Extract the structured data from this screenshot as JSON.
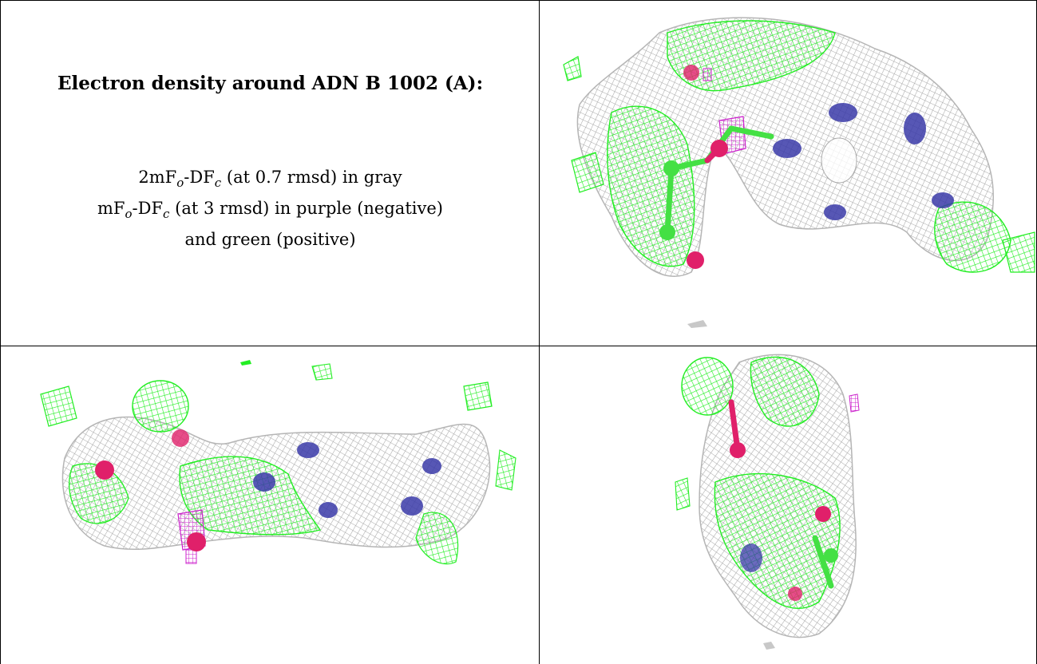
{
  "title": "Electron density around ADN B 1002 (A):",
  "legend": {
    "line1_a": "2mF",
    "line1_sub_o": "o",
    "line1_b": "-DF",
    "line1_sub_c": "c",
    "line1_c": " (at 0.7 rmsd) in gray",
    "line2_a": "mF",
    "line2_sub_o": "o",
    "line2_b": "-DF",
    "line2_sub_c": "c",
    "line2_c": " (at 3 rmsd) in purple (negative)",
    "line3": "and green (positive)"
  },
  "colors": {
    "gray_mesh": "#a8a8a8",
    "green_mesh": "#22ee22",
    "purple_mesh": "#cc22cc",
    "oxygen": "#e0206a",
    "nitrogen": "#3a3aa8",
    "carbon": "#44e044"
  },
  "panels": [
    {
      "view": "top-right",
      "icon": "density-view-1"
    },
    {
      "view": "bottom-left",
      "icon": "density-view-2"
    },
    {
      "view": "bottom-right",
      "icon": "density-view-3"
    }
  ]
}
